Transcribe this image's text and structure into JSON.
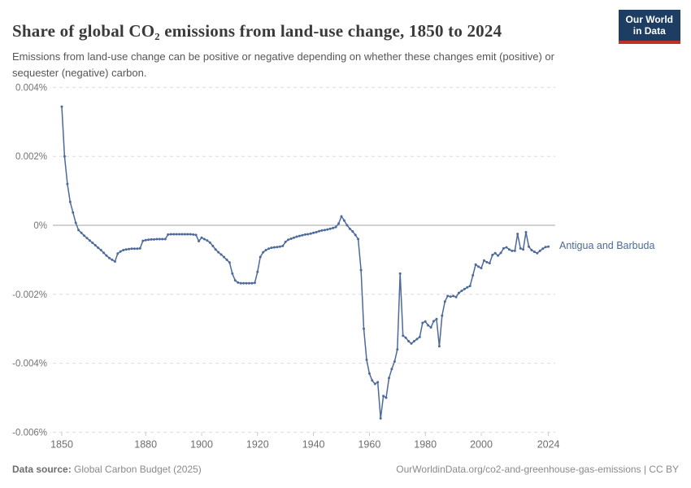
{
  "header": {
    "title": "Share of global CO₂ emissions from land-use change, 1850 to 2024",
    "subtitle": "Emissions from land-use change can be positive or negative depending on whether these changes emit (positive) or sequester (negative) carbon.",
    "logo_line1": "Our World",
    "logo_line2": "in Data"
  },
  "colors": {
    "line": "#4c6a9c",
    "grid": "#dcdcdc",
    "zero_line": "#a5a5a5",
    "tick_mark": "#c8c8c8",
    "logo_bg": "#1d3d63",
    "logo_stripe": "#bf3127",
    "title_text": "#3a3a3a",
    "subtitle_text": "#565656",
    "axis_text": "#737373",
    "footer_text": "#8a8a8a"
  },
  "chart_data": {
    "type": "line",
    "title": "Share of global CO₂ emissions from land-use change, 1850 to 2024",
    "entity_label": "Antigua and Barbuda",
    "ylabel": "",
    "xlabel": "",
    "grid": true,
    "legend_position": "end-of-line",
    "xlim": [
      1847,
      2026.5
    ],
    "ylim": [
      -0.006,
      0.004
    ],
    "y_ticks": [
      {
        "value": 0.004,
        "label": "0.004%"
      },
      {
        "value": 0.002,
        "label": "0.002%"
      },
      {
        "value": 0,
        "label": "0%"
      },
      {
        "value": -0.002,
        "label": "-0.002%"
      },
      {
        "value": -0.004,
        "label": "-0.004%"
      },
      {
        "value": -0.006,
        "label": "-0.006%"
      }
    ],
    "x_ticks": [
      {
        "value": 1850,
        "label": "1850"
      },
      {
        "value": 1880,
        "label": "1880"
      },
      {
        "value": 1900,
        "label": "1900"
      },
      {
        "value": 1920,
        "label": "1920"
      },
      {
        "value": 1940,
        "label": "1940"
      },
      {
        "value": 1960,
        "label": "1960"
      },
      {
        "value": 1980,
        "label": "1980"
      },
      {
        "value": 2000,
        "label": "2000"
      },
      {
        "value": 2024,
        "label": "2024"
      }
    ],
    "x": [
      1850,
      1851,
      1852,
      1853,
      1854,
      1855,
      1856,
      1857,
      1858,
      1859,
      1860,
      1861,
      1862,
      1863,
      1864,
      1865,
      1866,
      1867,
      1868,
      1869,
      1870,
      1871,
      1872,
      1873,
      1874,
      1875,
      1876,
      1877,
      1878,
      1879,
      1880,
      1881,
      1882,
      1883,
      1884,
      1885,
      1886,
      1887,
      1888,
      1889,
      1890,
      1891,
      1892,
      1893,
      1894,
      1895,
      1896,
      1897,
      1898,
      1899,
      1900,
      1901,
      1902,
      1903,
      1904,
      1905,
      1906,
      1907,
      1908,
      1909,
      1910,
      1911,
      1912,
      1913,
      1914,
      1915,
      1916,
      1917,
      1918,
      1919,
      1920,
      1921,
      1922,
      1923,
      1924,
      1925,
      1926,
      1927,
      1928,
      1929,
      1930,
      1931,
      1932,
      1933,
      1934,
      1935,
      1936,
      1937,
      1938,
      1939,
      1940,
      1941,
      1942,
      1943,
      1944,
      1945,
      1946,
      1947,
      1948,
      1949,
      1950,
      1951,
      1952,
      1953,
      1954,
      1955,
      1956,
      1957,
      1958,
      1959,
      1960,
      1961,
      1962,
      1963,
      1964,
      1965,
      1966,
      1967,
      1968,
      1969,
      1970,
      1971,
      1972,
      1973,
      1974,
      1975,
      1976,
      1977,
      1978,
      1979,
      1980,
      1981,
      1982,
      1983,
      1984,
      1985,
      1986,
      1987,
      1988,
      1989,
      1990,
      1991,
      1992,
      1993,
      1994,
      1995,
      1996,
      1997,
      1998,
      1999,
      2000,
      2001,
      2002,
      2003,
      2004,
      2005,
      2006,
      2007,
      2008,
      2009,
      2010,
      2011,
      2012,
      2013,
      2014,
      2015,
      2016,
      2017,
      2018,
      2019,
      2020,
      2021,
      2022,
      2023,
      2024
    ],
    "series": [
      {
        "name": "Antigua and Barbuda",
        "values": [
          0.00344,
          0.002,
          0.0012,
          0.00068,
          0.00037,
          7e-05,
          -0.00014,
          -0.00022,
          -0.0003,
          -0.00037,
          -0.00044,
          -0.00051,
          -0.00058,
          -0.00065,
          -0.00072,
          -0.0008,
          -0.00088,
          -0.00095,
          -0.001,
          -0.00105,
          -0.00082,
          -0.00076,
          -0.00072,
          -0.0007,
          -0.00069,
          -0.00068,
          -0.00068,
          -0.00068,
          -0.00067,
          -0.00045,
          -0.00043,
          -0.00042,
          -0.00041,
          -0.00041,
          -0.0004,
          -0.0004,
          -0.0004,
          -0.0004,
          -0.00027,
          -0.00026,
          -0.00026,
          -0.00026,
          -0.00026,
          -0.00026,
          -0.00026,
          -0.00026,
          -0.00026,
          -0.00027,
          -0.00028,
          -0.00046,
          -0.00036,
          -0.0004,
          -0.00044,
          -0.0005,
          -0.0006,
          -0.0007,
          -0.00078,
          -0.00085,
          -0.00092,
          -0.001,
          -0.00108,
          -0.0014,
          -0.0016,
          -0.00166,
          -0.00168,
          -0.00168,
          -0.00168,
          -0.00168,
          -0.00168,
          -0.00167,
          -0.00135,
          -0.00092,
          -0.00078,
          -0.00072,
          -0.00068,
          -0.00065,
          -0.00064,
          -0.00063,
          -0.00062,
          -0.0006,
          -0.00048,
          -0.00042,
          -0.00039,
          -0.00036,
          -0.00033,
          -0.00031,
          -0.00029,
          -0.00027,
          -0.00026,
          -0.00024,
          -0.00022,
          -0.0002,
          -0.00017,
          -0.00015,
          -0.00014,
          -0.00012,
          -0.0001,
          -8e-05,
          -5e-05,
          5e-05,
          0.00026,
          0.00014,
          0,
          -0.0001,
          -0.00018,
          -0.00028,
          -0.0004,
          -0.0013,
          -0.003,
          -0.0039,
          -0.0043,
          -0.0045,
          -0.0046,
          -0.00455,
          -0.0056,
          -0.00495,
          -0.005,
          -0.00443,
          -0.00417,
          -0.00395,
          -0.0036,
          -0.0014,
          -0.0032,
          -0.00326,
          -0.00336,
          -0.00343,
          -0.00336,
          -0.0033,
          -0.00324,
          -0.00283,
          -0.00279,
          -0.0029,
          -0.00296,
          -0.00278,
          -0.00272,
          -0.00351,
          -0.00262,
          -0.00221,
          -0.00205,
          -0.00207,
          -0.00205,
          -0.00208,
          -0.00196,
          -0.0019,
          -0.00185,
          -0.0018,
          -0.00176,
          -0.00145,
          -0.00114,
          -0.0012,
          -0.00124,
          -0.00102,
          -0.00107,
          -0.0011,
          -0.00086,
          -0.00081,
          -0.00088,
          -0.0008,
          -0.00067,
          -0.00064,
          -0.0007,
          -0.00074,
          -0.00074,
          -0.00025,
          -0.00067,
          -0.0007,
          -0.0002,
          -0.00062,
          -0.00072,
          -0.00077,
          -0.00081,
          -0.00074,
          -0.00068,
          -0.00063,
          -0.00062
        ]
      }
    ]
  },
  "footer": {
    "source_label": "Data source:",
    "source_text": " Global Carbon Budget (2025)",
    "right_text": "OurWorldinData.org/co2-and-greenhouse-gas-emissions | CC BY"
  }
}
